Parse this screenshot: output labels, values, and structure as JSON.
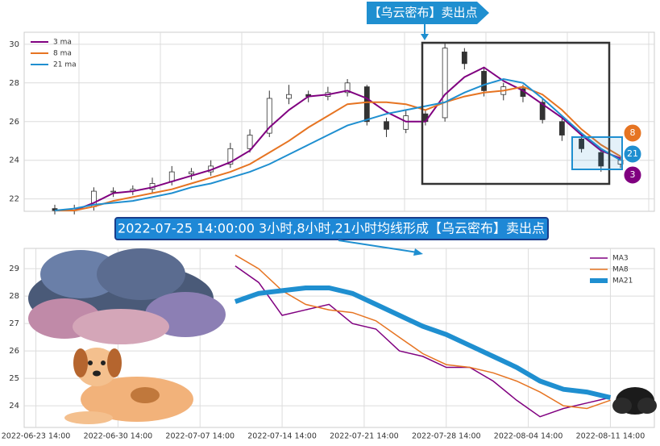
{
  "chart_data": [
    {
      "type": "candlestick",
      "annotation": "【乌云密布】卖出点",
      "ylim": [
        21.36,
        30.62
      ],
      "yticks": [
        22,
        24,
        26,
        28,
        30
      ],
      "grid": true,
      "legend": "upper left",
      "up_color": "#ffffff",
      "down_color": "#333333",
      "open": [
        21.5,
        21.4,
        21.6,
        22.4,
        22.4,
        22.5,
        22.9,
        23.3,
        23.4,
        23.8,
        24.6,
        25.4,
        27.2,
        27.4,
        27.3,
        27.5,
        27.8,
        26.0,
        25.6,
        26.4,
        26.2,
        29.6,
        28.6,
        27.4,
        27.7,
        27.0,
        26.0,
        25.1,
        24.4,
        23.8
      ],
      "close": [
        21.4,
        21.5,
        22.4,
        22.4,
        22.5,
        22.8,
        23.4,
        23.4,
        23.7,
        24.6,
        25.3,
        27.2,
        27.4,
        27.3,
        27.5,
        28.0,
        26.0,
        25.6,
        26.3,
        26.0,
        29.8,
        29.0,
        27.6,
        27.8,
        27.3,
        26.1,
        25.3,
        24.6,
        23.7,
        24.0
      ],
      "high": [
        21.7,
        21.7,
        22.6,
        22.6,
        22.7,
        23.1,
        23.7,
        23.6,
        24.0,
        24.9,
        25.6,
        27.6,
        27.9,
        27.6,
        27.8,
        28.2,
        27.9,
        26.2,
        26.6,
        26.6,
        30.1,
        29.8,
        28.8,
        28.0,
        27.9,
        27.2,
        26.2,
        25.4,
        24.6,
        24.2
      ],
      "low": [
        21.2,
        21.2,
        21.4,
        22.1,
        22.2,
        22.3,
        22.7,
        23.0,
        23.2,
        23.6,
        24.4,
        25.2,
        26.9,
        27.0,
        27.1,
        27.3,
        25.8,
        25.2,
        25.4,
        25.8,
        26.0,
        28.7,
        27.3,
        27.1,
        27.0,
        25.9,
        25.0,
        24.4,
        23.4,
        23.6
      ],
      "series": [
        {
          "name": "3 ma",
          "badge": "3",
          "color": "#800080",
          "line_width": 2,
          "values": [
            21.4,
            21.4,
            21.8,
            22.3,
            22.4,
            22.6,
            22.9,
            23.2,
            23.5,
            23.9,
            24.5,
            25.7,
            26.6,
            27.3,
            27.4,
            27.6,
            27.2,
            26.5,
            26.0,
            26.0,
            27.4,
            28.3,
            28.8,
            28.1,
            27.6,
            26.9,
            26.2,
            25.3,
            24.5,
            24.1
          ]
        },
        {
          "name": "8 ma",
          "badge": "8",
          "color": "#e67422",
          "line_width": 2,
          "values": [
            21.4,
            21.4,
            21.6,
            21.9,
            22.1,
            22.3,
            22.5,
            22.8,
            23.1,
            23.4,
            23.8,
            24.4,
            25.0,
            25.7,
            26.3,
            26.9,
            27.0,
            27.0,
            26.9,
            26.6,
            27.0,
            27.3,
            27.5,
            27.6,
            27.8,
            27.4,
            26.6,
            25.6,
            24.8,
            24.2
          ]
        },
        {
          "name": "21 ma",
          "badge": "21",
          "color": "#1f8fd0",
          "line_width": 2,
          "values": [
            21.4,
            21.5,
            21.7,
            21.8,
            21.9,
            22.1,
            22.3,
            22.6,
            22.8,
            23.1,
            23.4,
            23.8,
            24.3,
            24.8,
            25.3,
            25.8,
            26.1,
            26.4,
            26.6,
            26.8,
            27.0,
            27.5,
            27.9,
            28.2,
            28.0,
            27.2,
            26.3,
            25.4,
            24.6,
            24.0
          ]
        }
      ]
    },
    {
      "type": "line",
      "annotation": "2022-07-25 14:00:00 3小时,8小时,21小时均线形成【乌云密布】卖出点",
      "xlim": [
        "2022-06-22 14:00",
        "2022-08-15 08:00"
      ],
      "xticks": [
        "2022-06-23 14:00",
        "2022-06-30 14:00",
        "2022-07-07 14:00",
        "2022-07-14 14:00",
        "2022-07-21 14:00",
        "2022-07-28 14:00",
        "2022-08-04 14:00",
        "2022-08-11 14:00"
      ],
      "ylim": [
        23.21,
        29.74
      ],
      "yticks": [
        24,
        25,
        26,
        27,
        28,
        29
      ],
      "grid": true,
      "legend": "upper right",
      "x": [
        "2022-07-10 14:00",
        "2022-07-12 14:00",
        "2022-07-14 14:00",
        "2022-07-16 14:00",
        "2022-07-18 14:00",
        "2022-07-20 14:00",
        "2022-07-22 14:00",
        "2022-07-24 14:00",
        "2022-07-26 14:00",
        "2022-07-28 14:00",
        "2022-07-30 14:00",
        "2022-08-01 14:00",
        "2022-08-03 14:00",
        "2022-08-05 14:00",
        "2022-08-07 14:00",
        "2022-08-09 14:00",
        "2022-08-11 14:00"
      ],
      "series": [
        {
          "name": "MA3",
          "color": "#800080",
          "line_width": 1.5,
          "values": [
            29.1,
            28.5,
            27.3,
            27.5,
            27.7,
            27.0,
            26.8,
            26.0,
            25.8,
            25.4,
            25.4,
            24.9,
            24.2,
            23.6,
            23.9,
            24.1,
            24.3
          ]
        },
        {
          "name": "MA8",
          "color": "#e67422",
          "line_width": 1.5,
          "values": [
            29.5,
            29.0,
            28.2,
            27.7,
            27.5,
            27.4,
            27.1,
            26.5,
            25.9,
            25.5,
            25.4,
            25.2,
            24.9,
            24.5,
            24.0,
            23.9,
            24.2
          ]
        },
        {
          "name": "MA21",
          "color": "#1f8fd0",
          "line_width": 6,
          "values": [
            27.8,
            28.1,
            28.2,
            28.3,
            28.3,
            28.1,
            27.7,
            27.3,
            26.9,
            26.6,
            26.2,
            25.8,
            25.4,
            24.9,
            24.6,
            24.5,
            24.3
          ]
        }
      ]
    }
  ]
}
